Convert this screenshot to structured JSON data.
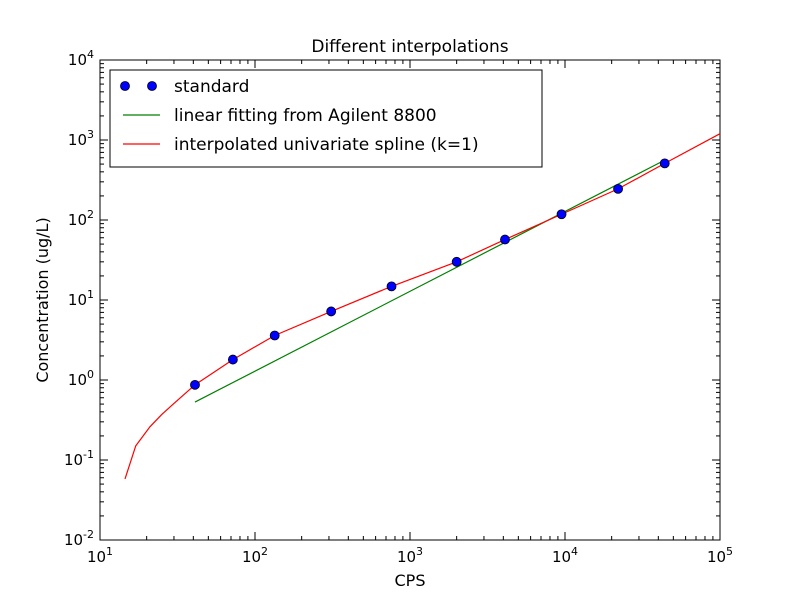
{
  "chart_data": {
    "type": "line",
    "title": "Different interpolations",
    "xlabel": "CPS",
    "ylabel": "Concentration (ug/L)",
    "xscale": "log",
    "yscale": "log",
    "xlim": [
      10,
      100000
    ],
    "ylim": [
      0.01,
      10000
    ],
    "x_ticks": [
      {
        "value": 10,
        "base": "10",
        "exp": "1"
      },
      {
        "value": 100,
        "base": "10",
        "exp": "2"
      },
      {
        "value": 1000,
        "base": "10",
        "exp": "3"
      },
      {
        "value": 10000,
        "base": "10",
        "exp": "4"
      },
      {
        "value": 100000,
        "base": "10",
        "exp": "5"
      }
    ],
    "y_ticks": [
      {
        "value": 0.01,
        "base": "10",
        "exp": "-2"
      },
      {
        "value": 0.1,
        "base": "10",
        "exp": "-1"
      },
      {
        "value": 1,
        "base": "10",
        "exp": "0"
      },
      {
        "value": 10,
        "base": "10",
        "exp": "1"
      },
      {
        "value": 100,
        "base": "10",
        "exp": "2"
      },
      {
        "value": 1000,
        "base": "10",
        "exp": "3"
      },
      {
        "value": 10000,
        "base": "10",
        "exp": "4"
      }
    ],
    "grid": false,
    "legend_position": "top-left",
    "series": [
      {
        "name": "standard",
        "kind": "markers",
        "color": "#0000ff",
        "x": [
          41,
          72,
          134,
          310,
          760,
          2000,
          4100,
          9500,
          22000,
          44000
        ],
        "y": [
          0.87,
          1.8,
          3.6,
          7.2,
          14.8,
          30,
          57,
          118,
          245,
          510
        ]
      },
      {
        "name": "linear fitting from Agilent 8800",
        "kind": "line",
        "color": "#008000",
        "x": [
          41,
          44000
        ],
        "y": [
          0.53,
          560
        ]
      },
      {
        "name": "interpolated univariate spline (k=1)",
        "kind": "line",
        "color": "#ff0000",
        "x": [
          14.5,
          17,
          21,
          25,
          30,
          41,
          72,
          134,
          310,
          760,
          2000,
          4100,
          9500,
          22000,
          44000,
          100000
        ],
        "y": [
          0.058,
          0.15,
          0.26,
          0.37,
          0.51,
          0.87,
          1.8,
          3.6,
          7.2,
          14.8,
          30,
          57,
          118,
          245,
          510,
          1200
        ]
      }
    ]
  }
}
